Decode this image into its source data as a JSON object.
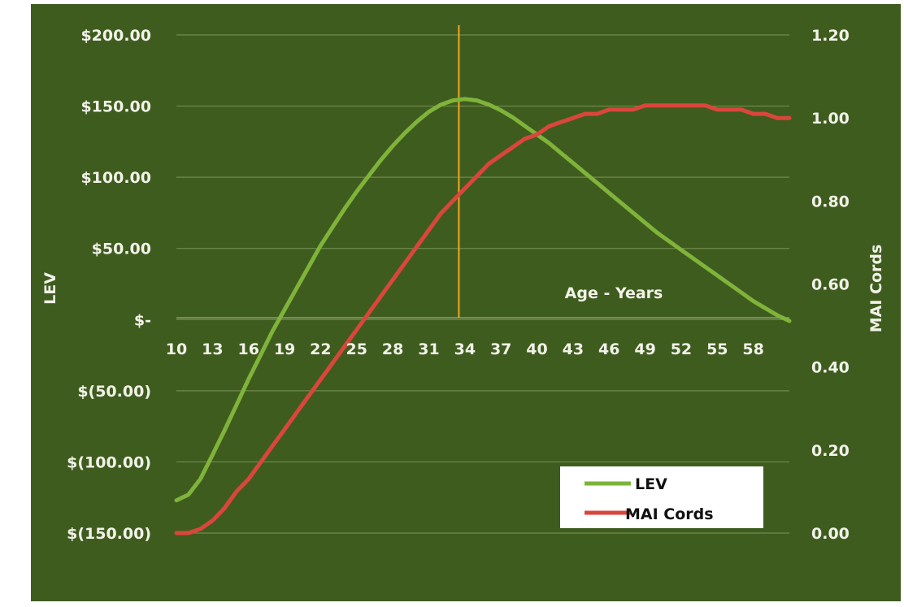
{
  "chart_data": {
    "type": "line",
    "title": "",
    "xlabel": "Age - Years",
    "ylabel": "LEV",
    "y2label": "MAI Cords",
    "x_ticks": [
      "10",
      "13",
      "16",
      "19",
      "22",
      "25",
      "28",
      "31",
      "34",
      "37",
      "40",
      "43",
      "46",
      "49",
      "52",
      "55",
      "58"
    ],
    "xlim": [
      10,
      61
    ],
    "ylim": [
      -150,
      200
    ],
    "y_ticks": [
      200,
      150,
      100,
      50,
      0,
      -50,
      -100,
      -150
    ],
    "y_tick_labels": [
      "$200.00",
      "$150.00",
      "$100.00",
      "$50.00",
      "$-",
      "$(50.00)",
      "$(100.00)",
      "$(150.00)"
    ],
    "y2lim": [
      0,
      1.2
    ],
    "y2_ticks": [
      1.2,
      1.0,
      0.8,
      0.6,
      0.4,
      0.2,
      0.0
    ],
    "y2_tick_labels": [
      "1.20",
      "1.00",
      "0.80",
      "0.60",
      "0.40",
      "0.20",
      "0.00"
    ],
    "grid": true,
    "legend_position": "bottom-right",
    "vertical_marker_x": 33.5,
    "series": [
      {
        "name": "LEV",
        "axis": "left",
        "color": "#7fb33a",
        "x": [
          10,
          11,
          12,
          13,
          14,
          15,
          16,
          17,
          18,
          19,
          20,
          21,
          22,
          23,
          24,
          25,
          26,
          27,
          28,
          29,
          30,
          31,
          32,
          33,
          34,
          35,
          36,
          37,
          38,
          39,
          40,
          41,
          42,
          43,
          44,
          45,
          46,
          47,
          48,
          49,
          50,
          51,
          52,
          53,
          54,
          55,
          56,
          57,
          58,
          59,
          60,
          61
        ],
        "values": [
          -127,
          -123,
          -112,
          -95,
          -78,
          -60,
          -42,
          -25,
          -8,
          7,
          22,
          37,
          52,
          65,
          78,
          90,
          101,
          112,
          122,
          131,
          139,
          146,
          151,
          154,
          155,
          154,
          151,
          147,
          142,
          136,
          130,
          124,
          117,
          110,
          103,
          96,
          89,
          82,
          75,
          68,
          61,
          55,
          49,
          43,
          37,
          31,
          25,
          19,
          13,
          8,
          3,
          -1
        ]
      },
      {
        "name": "MAI Cords",
        "axis": "right",
        "color": "#d9463c",
        "x": [
          10,
          11,
          12,
          13,
          14,
          15,
          16,
          17,
          18,
          19,
          20,
          21,
          22,
          23,
          24,
          25,
          26,
          27,
          28,
          29,
          30,
          31,
          32,
          33,
          34,
          35,
          36,
          37,
          38,
          39,
          40,
          41,
          42,
          43,
          44,
          45,
          46,
          47,
          48,
          49,
          50,
          51,
          52,
          53,
          54,
          55,
          56,
          57,
          58,
          59,
          60,
          61
        ],
        "values": [
          0.0,
          0.0,
          0.01,
          0.03,
          0.06,
          0.1,
          0.13,
          0.17,
          0.21,
          0.25,
          0.29,
          0.33,
          0.37,
          0.41,
          0.45,
          0.49,
          0.53,
          0.57,
          0.61,
          0.65,
          0.69,
          0.73,
          0.77,
          0.8,
          0.83,
          0.86,
          0.89,
          0.91,
          0.93,
          0.95,
          0.96,
          0.98,
          0.99,
          1.0,
          1.01,
          1.01,
          1.02,
          1.02,
          1.02,
          1.03,
          1.03,
          1.03,
          1.03,
          1.03,
          1.03,
          1.02,
          1.02,
          1.02,
          1.01,
          1.01,
          1.0,
          1.0
        ]
      }
    ]
  }
}
